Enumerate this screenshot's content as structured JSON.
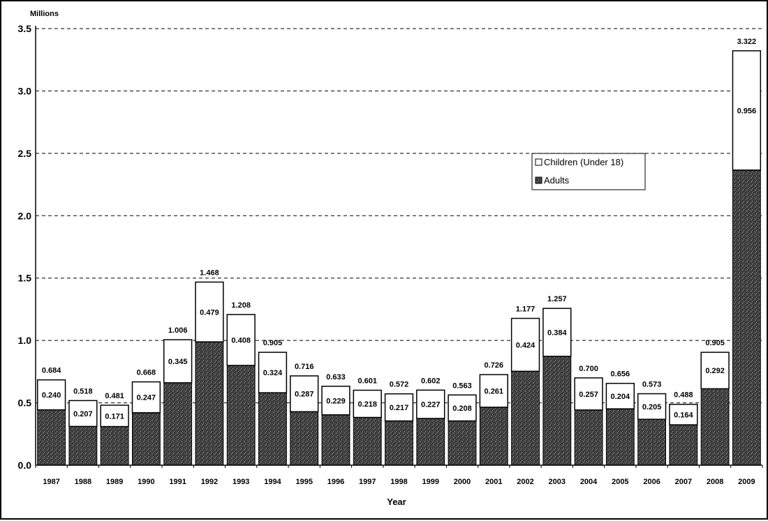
{
  "chart_data": {
    "type": "bar",
    "stacked": true,
    "title": "",
    "xlabel": "Year",
    "ylabel": "",
    "units_label": "Millions",
    "ylim": [
      0,
      3.5
    ],
    "yticks": [
      "0.0",
      "0.5",
      "1.0",
      "1.5",
      "2.0",
      "2.5",
      "3.0",
      "3.5"
    ],
    "grid": true,
    "legend_position": "upper-right",
    "categories": [
      "1987",
      "1988",
      "1989",
      "1990",
      "1991",
      "1992",
      "1993",
      "1994",
      "1995",
      "1996",
      "1997",
      "1998",
      "1999",
      "2000",
      "2001",
      "2002",
      "2003",
      "2004",
      "2005",
      "2006",
      "2007",
      "2008",
      "2009"
    ],
    "totals": [
      0.684,
      0.518,
      0.481,
      0.668,
      1.006,
      1.468,
      1.208,
      0.905,
      0.716,
      0.633,
      0.601,
      0.572,
      0.602,
      0.563,
      0.726,
      1.177,
      1.257,
      0.7,
      0.656,
      0.573,
      0.488,
      0.905,
      3.322
    ],
    "total_labels": [
      "0.684",
      "0.518",
      "0.481",
      "0.668",
      "1.006",
      "1.468",
      "1.208",
      "0.905",
      "0.716",
      "0.633",
      "0.601",
      "0.572",
      "0.602",
      "0.563",
      "0.726",
      "1.177",
      "1.257",
      "0.700",
      "0.656",
      "0.573",
      "0.488",
      "0.905",
      "3.322"
    ],
    "series": [
      {
        "name": "Children (Under 18)",
        "color": "#ffffff",
        "values": [
          0.24,
          0.207,
          0.171,
          0.247,
          0.345,
          0.479,
          0.408,
          0.324,
          0.287,
          0.229,
          0.218,
          0.217,
          0.227,
          0.208,
          0.261,
          0.424,
          0.384,
          0.257,
          0.204,
          0.205,
          0.164,
          0.292,
          0.956
        ],
        "labels": [
          "0.240",
          "0.207",
          "0.171",
          "0.247",
          "0.345",
          "0.479",
          "0.408",
          "0.324",
          "0.287",
          "0.229",
          "0.218",
          "0.217",
          "0.227",
          "0.208",
          "0.261",
          "0.424",
          "0.384",
          "0.257",
          "0.204",
          "0.205",
          "0.164",
          "0.292",
          "0.956"
        ]
      },
      {
        "name": "Adults",
        "color": "#2a2a2a",
        "values": [
          0.444,
          0.311,
          0.31,
          0.421,
          0.661,
          0.989,
          0.8,
          0.581,
          0.429,
          0.404,
          0.383,
          0.355,
          0.375,
          0.355,
          0.465,
          0.753,
          0.873,
          0.443,
          0.452,
          0.368,
          0.324,
          0.613,
          2.366
        ]
      }
    ]
  }
}
